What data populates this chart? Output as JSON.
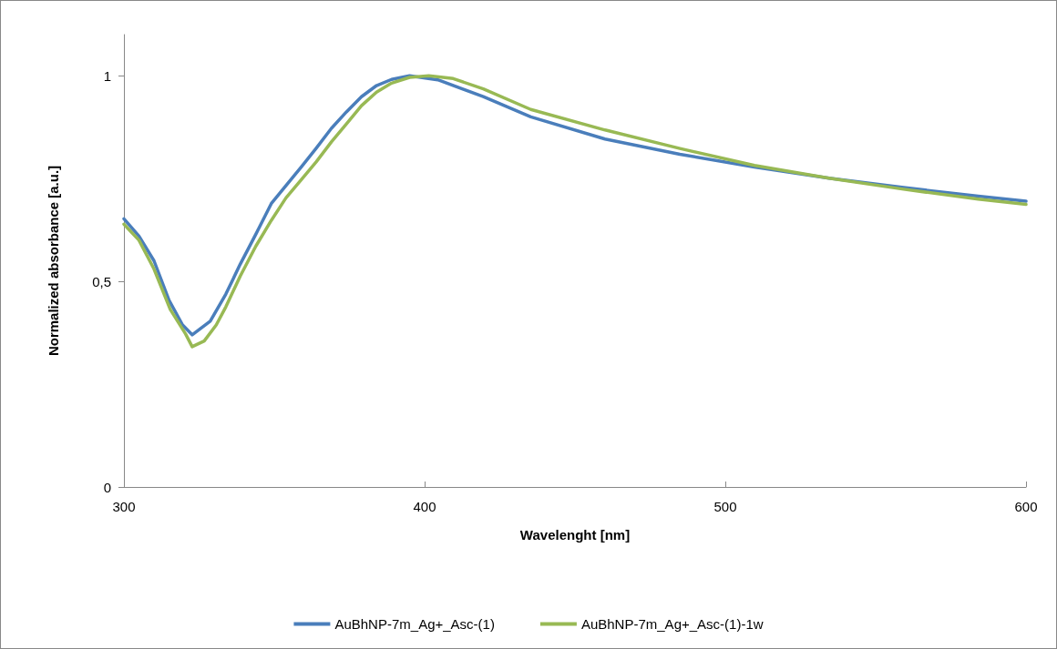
{
  "chart_data": {
    "type": "line",
    "xlabel": "Wavelenght [nm]",
    "ylabel": "Normalized absorbance [a.u.]",
    "xlim": [
      300,
      600
    ],
    "xticks": [
      300,
      400,
      500,
      600
    ],
    "ylim": [
      0,
      1.1
    ],
    "yticks": [
      0,
      {
        "value": 0.5,
        "label": "0,5"
      },
      1
    ],
    "grid": false,
    "legend": "bottom",
    "marker": "none",
    "line_style": "solid",
    "series": [
      {
        "name": "AuBhNP-7m_Ag+_Asc-(1)",
        "color": "#4a7ebb",
        "x": [
          300,
          305,
          310,
          315,
          319.5,
          322.7,
          328.7,
          333.9,
          338.7,
          343.9,
          349,
          353.9,
          359,
          364,
          369,
          374,
          379,
          384,
          389,
          395,
          404.4,
          419.5,
          435.3,
          460,
          484.9,
          509.7,
          534.5,
          559.3,
          584.1,
          600
        ],
        "values": [
          0.652,
          0.61,
          0.55,
          0.454,
          0.394,
          0.37,
          0.403,
          0.469,
          0.542,
          0.615,
          0.689,
          0.733,
          0.778,
          0.824,
          0.872,
          0.912,
          0.949,
          0.976,
          0.991,
          1.0,
          0.99,
          0.949,
          0.9,
          0.846,
          0.809,
          0.778,
          0.751,
          0.728,
          0.707,
          0.695
        ]
      },
      {
        "name": "AuBhNP-7m_Ag+_Asc-(1)-1w",
        "color": "#98b954",
        "x": [
          300,
          305,
          310,
          315.4,
          320.5,
          322.7,
          326.7,
          330.7,
          333.9,
          338.7,
          343.9,
          349,
          353.9,
          359,
          364,
          369,
          374,
          379,
          384,
          389,
          395,
          401.4,
          409.5,
          419.5,
          435.3,
          460,
          484.9,
          509.7,
          534.5,
          559.3,
          584.1,
          600
        ],
        "values": [
          0.639,
          0.6,
          0.53,
          0.432,
          0.372,
          0.341,
          0.355,
          0.394,
          0.438,
          0.513,
          0.586,
          0.648,
          0.703,
          0.747,
          0.791,
          0.839,
          0.883,
          0.927,
          0.96,
          0.982,
          0.996,
          1.0,
          0.993,
          0.968,
          0.918,
          0.868,
          0.823,
          0.782,
          0.751,
          0.724,
          0.7,
          0.687
        ]
      }
    ]
  }
}
